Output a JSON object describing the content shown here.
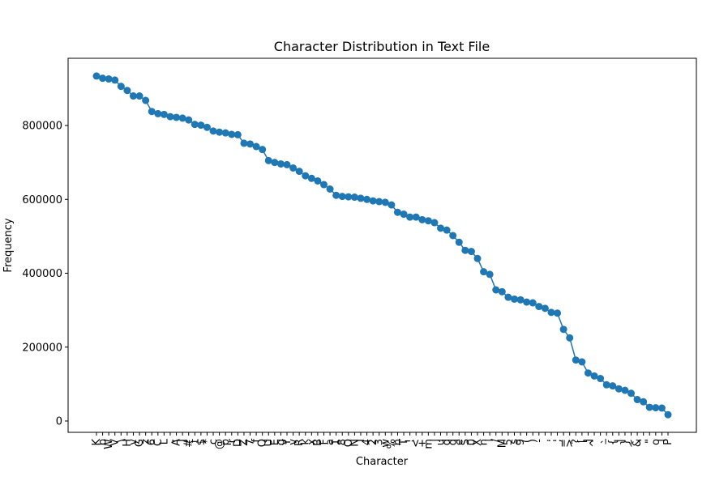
{
  "chart_data": {
    "type": "line",
    "title": "Character Distribution in Text File",
    "xlabel": "Character",
    "ylabel": "Frequency",
    "categories": [
      "K",
      "b",
      "W",
      "V",
      "\\",
      "H",
      "y",
      "G",
      "z",
      "6",
      "C",
      "L",
      ",",
      "A",
      "J",
      "#",
      "t",
      "$",
      "*",
      "c",
      "@",
      "p",
      "r",
      "D",
      "Z",
      "7",
      "f",
      "Q",
      "U",
      "E",
      "g",
      "Y",
      "v",
      "R",
      "k",
      "x",
      "B",
      "F",
      "a",
      "1",
      "8",
      "O",
      "N",
      "I",
      "4",
      "2",
      "3",
      "w",
      "%",
      "h",
      "T",
      "!",
      "<",
      "+",
      "m",
      "j",
      "u",
      "d",
      "q",
      "e",
      "S",
      "0",
      "X",
      "n",
      "i",
      "/",
      "M",
      "5",
      "s",
      "9",
      "(",
      ")",
      "-",
      ".",
      ":",
      ";",
      "=",
      ">",
      "?",
      "[",
      "]",
      "^",
      "_",
      "`",
      "{",
      "|",
      "}",
      "~",
      "&",
      "'",
      "\"",
      "o",
      "l",
      "P"
    ],
    "series": [
      {
        "color": "#1f77b4",
        "values": [
          934000,
          928000,
          926000,
          923000,
          906000,
          895000,
          880000,
          880000,
          868000,
          838000,
          832000,
          830000,
          824000,
          822000,
          820000,
          815000,
          803000,
          801000,
          795000,
          785000,
          782000,
          780000,
          776000,
          775000,
          752000,
          750000,
          743000,
          735000,
          705000,
          700000,
          696000,
          694000,
          685000,
          676000,
          664000,
          657000,
          650000,
          640000,
          628000,
          611000,
          608000,
          607000,
          606000,
          603000,
          600000,
          596000,
          594000,
          592000,
          585000,
          565000,
          560000,
          552000,
          552000,
          545000,
          542000,
          537000,
          522000,
          517000,
          502000,
          484000,
          462000,
          459000,
          440000,
          404000,
          397000,
          355000,
          350000,
          335000,
          330000,
          328000,
          322000,
          320000,
          310000,
          305000,
          294000,
          292000,
          248000,
          225000,
          165000,
          160000,
          130000,
          122000,
          115000,
          98000,
          95000,
          87000,
          83000,
          75000,
          58000,
          52000,
          37000,
          36000,
          35000,
          17000
        ]
      }
    ],
    "ylim": [
      -30700,
      982000
    ],
    "yticks": [
      0,
      200000,
      400000,
      600000,
      800000
    ]
  }
}
